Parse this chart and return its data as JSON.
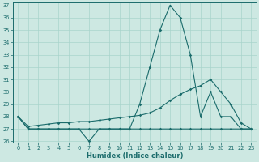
{
  "xlabel": "Humidex (Indice chaleur)",
  "x": [
    0,
    1,
    2,
    3,
    4,
    5,
    6,
    7,
    8,
    9,
    10,
    11,
    12,
    13,
    14,
    15,
    16,
    17,
    18,
    19,
    20,
    21,
    22,
    23
  ],
  "line_peak": [
    28,
    27,
    27,
    27,
    27,
    27,
    27,
    26,
    27,
    27,
    27,
    27,
    29,
    32,
    35,
    37,
    36,
    33,
    28,
    30,
    28,
    28,
    27,
    27
  ],
  "line_rise": [
    28,
    27.2,
    27.3,
    27.4,
    27.5,
    27.5,
    27.6,
    27.6,
    27.7,
    27.8,
    27.9,
    28.0,
    28.1,
    28.3,
    28.7,
    29.3,
    29.8,
    30.2,
    30.5,
    31,
    30,
    29,
    27.5,
    27
  ],
  "line_flat": [
    28,
    27,
    27,
    27,
    27,
    27,
    27,
    27,
    27,
    27,
    27,
    27,
    27,
    27,
    27,
    27,
    27,
    27,
    27,
    27,
    27,
    27,
    27,
    27
  ],
  "ylim_min": 26,
  "ylim_max": 37,
  "yticks": [
    26,
    27,
    28,
    29,
    30,
    31,
    32,
    33,
    34,
    35,
    36,
    37
  ],
  "bg_color": "#cde8e2",
  "line_color": "#1a6b6b",
  "grid_color": "#a8d4cc"
}
